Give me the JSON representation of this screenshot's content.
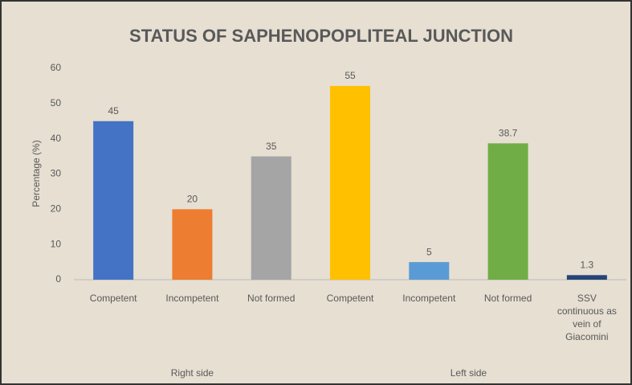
{
  "chart_data": {
    "type": "bar",
    "title": "STATUS OF SAPHENOPOPLITEAL JUNCTION",
    "y_label": "Percentage (%)",
    "groups": [
      {
        "name": "Right side",
        "categories": [
          "Competent",
          "Incompetent",
          "Not formed"
        ],
        "values": [
          45,
          20,
          35
        ],
        "colors": [
          "#4472c4",
          "#ed7d31",
          "#a5a5a5"
        ]
      },
      {
        "name": "Left side",
        "categories": [
          "Competent",
          "Incompetent",
          "Not formed",
          "SSV continuous as vein of Giacomini"
        ],
        "values": [
          55,
          5,
          38.7,
          1.3
        ],
        "colors": [
          "#ffc000",
          "#5b9bd5",
          "#70ad47",
          "#264478"
        ]
      }
    ],
    "ylim": [
      0,
      60
    ],
    "yticks": [
      0,
      10,
      20,
      30,
      40,
      50,
      60
    ],
    "grid": false
  }
}
